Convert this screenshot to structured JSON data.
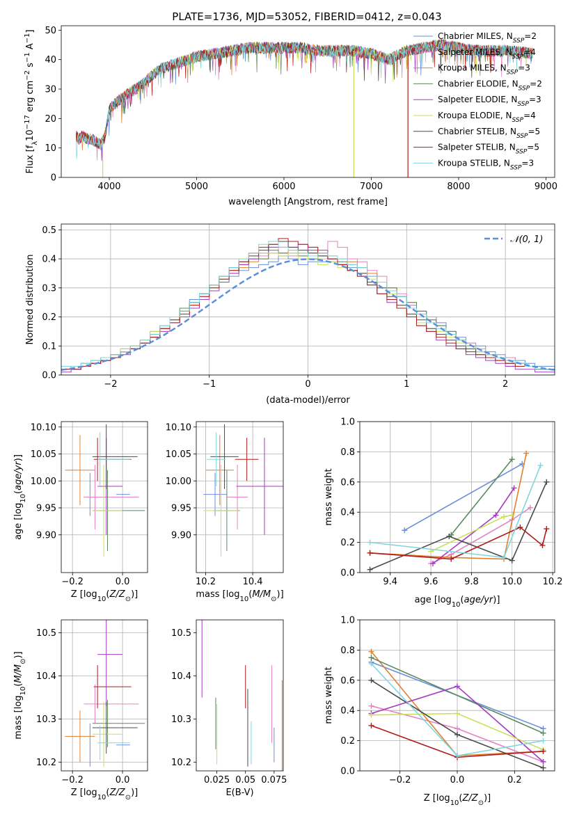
{
  "figure": {
    "title": "PLATE=1736, MJD=53052, FIBERID=0412, z=0.043"
  },
  "chart_data": [
    {
      "id": "spectrum",
      "type": "line",
      "xlabel": "wavelength [Angstrom, rest frame]",
      "ylabel_parts": [
        "Flux [f",
        "λ",
        "10",
        "−17",
        " erg cm",
        "−2",
        " s",
        "−1",
        " A",
        "−1",
        "]"
      ],
      "xlim": [
        3450,
        9100
      ],
      "ylim": [
        0,
        51.5
      ],
      "xticks": [
        4000,
        5000,
        6000,
        7000,
        8000,
        9000
      ],
      "yticks": [
        0,
        10,
        20,
        30,
        40,
        50
      ],
      "continuum": {
        "x": [
          3600,
          3650,
          3700,
          3750,
          3800,
          3850,
          3900,
          3950,
          4000,
          4100,
          4200,
          4300,
          4400,
          4500,
          4600,
          4800,
          5000,
          5200,
          5400,
          5600,
          5800,
          6000,
          6200,
          6400,
          6600,
          6800,
          7000,
          7200,
          7400,
          7600,
          7800,
          8000,
          8200,
          8400,
          8600,
          8850
        ],
        "y": [
          15,
          13,
          14,
          13,
          13,
          12,
          11,
          14,
          23,
          26,
          28,
          30,
          32,
          35,
          37,
          39,
          41,
          42,
          43,
          44,
          44,
          44,
          44,
          43,
          43,
          43,
          42,
          40,
          43,
          44,
          45,
          44,
          43,
          43,
          43,
          42
        ]
      },
      "drops": [
        {
          "series": "Kroupa ELODIE, N_SSP=4",
          "x": 3925
        },
        {
          "series": "Kroupa ELODIE, N_SSP=4",
          "x": 6800
        },
        {
          "series": "Salpeter STELIB, N_SSP=5",
          "x": 7420
        }
      ],
      "legend_location": "upper right"
    },
    {
      "id": "residuals",
      "type": "histogram",
      "xlabel": "(data-model)/error",
      "ylabel": "Normed distribution",
      "xlim": [
        -2.5,
        2.5
      ],
      "ylim": [
        0,
        0.52
      ],
      "xticks": [
        -2,
        -1,
        0,
        1,
        2
      ],
      "yticks": [
        0.0,
        0.1,
        0.2,
        0.3,
        0.4,
        0.5
      ],
      "grid": true,
      "bin_width": 0.1,
      "bin_start": -2.5,
      "reference_curve": {
        "label": "𝒩(0, 1)",
        "style": "dashed",
        "color": "#5b8fd9"
      },
      "legend_location": "upper right"
    },
    {
      "id": "age_vs_Z",
      "type": "errorbar",
      "xlabel": "Z [log10(Z/Z⊙)]",
      "ylabel": "age  [log10(age/yr)]",
      "xlim": [
        -0.245,
        0.1
      ],
      "ylim": [
        9.83,
        10.11
      ],
      "xticks": [
        -0.2,
        0.0
      ],
      "yticks": [
        9.9,
        9.95,
        10.0,
        10.05,
        10.1
      ],
      "grid": true
    },
    {
      "id": "age_vs_mass",
      "type": "errorbar",
      "xlabel": "mass [log10(M/M⊙)]",
      "ylabel": "",
      "xlim": [
        10.16,
        10.53
      ],
      "ylim": [
        9.83,
        10.11
      ],
      "xticks": [
        10.2,
        10.4
      ],
      "yticks": [
        9.9,
        9.95,
        10.0,
        10.05,
        10.1
      ],
      "grid": true
    },
    {
      "id": "weight_vs_age",
      "type": "line",
      "xlabel": "age  [log10(age/yr)]",
      "ylabel": "mass weight",
      "xlim": [
        9.25,
        10.21
      ],
      "ylim": [
        0,
        1
      ],
      "xticks": [
        9.4,
        9.6,
        9.8,
        10.0,
        10.2
      ],
      "yticks": [
        0.0,
        0.2,
        0.4,
        0.6,
        0.8,
        1.0
      ],
      "grid": true
    },
    {
      "id": "mass_vs_Z",
      "type": "errorbar",
      "xlabel": "Z [log10(Z/Z⊙)]",
      "ylabel": "mass [log10(M/M⊙)]",
      "xlim": [
        -0.245,
        0.1
      ],
      "ylim": [
        10.18,
        10.53
      ],
      "xticks": [
        -0.2,
        0.0
      ],
      "yticks": [
        10.2,
        10.3,
        10.4,
        10.5
      ],
      "grid": true
    },
    {
      "id": "mass_vs_ebv",
      "type": "errorbar",
      "xlabel": "E(B-V)",
      "ylabel": "",
      "xlim": [
        0.007,
        0.083
      ],
      "ylim": [
        10.18,
        10.53
      ],
      "xticks": [
        0.025,
        0.05,
        0.075
      ],
      "yticks": [
        10.2,
        10.3,
        10.4,
        10.5
      ],
      "grid": false
    },
    {
      "id": "weight_vs_Z",
      "type": "line",
      "xlabel": "Z [log10(Z/Z⊙)]",
      "ylabel": "mass weight",
      "xlim": [
        -0.34,
        0.34
      ],
      "ylim": [
        0,
        1
      ],
      "xticks": [
        -0.2,
        0.0,
        0.2
      ],
      "yticks": [
        0.0,
        0.2,
        0.4,
        0.6,
        0.8,
        1.0
      ],
      "grid": true
    }
  ],
  "series": [
    {
      "imf": "Chabrier",
      "lib": "MILES",
      "nssp": "2",
      "color": "#6a8fdb",
      "Z": [
        -0.13,
        -0.025,
        0.03
      ],
      "age": [
        9.975,
        9.975,
        0.08
      ],
      "mass": [
        10.24,
        10.24,
        0.05
      ],
      "ebv": 0.075,
      "ebv_err": 0.04,
      "tracks_age": [
        [
          9.47,
          0.28
        ],
        [
          10.05,
          0.72
        ]
      ],
      "tracks_Z": [
        [
          -0.3,
          0.72
        ],
        [
          0.3,
          0.28
        ]
      ],
      "hist": [
        0.02,
        0.02,
        0.03,
        0.05,
        0.05,
        0.06,
        0.08,
        0.09,
        0.11,
        0.14,
        0.17,
        0.2,
        0.22,
        0.26,
        0.27,
        0.3,
        0.33,
        0.34,
        0.36,
        0.37,
        0.38,
        0.39,
        0.41,
        0.4,
        0.38,
        0.39,
        0.39,
        0.39,
        0.38,
        0.37,
        0.35,
        0.34,
        0.32,
        0.29,
        0.27,
        0.24,
        0.22,
        0.2,
        0.18,
        0.15,
        0.13,
        0.11,
        0.1,
        0.08,
        0.07,
        0.06,
        0.05,
        0.04,
        0.03,
        0.03
      ]
    },
    {
      "imf": "Salpeter",
      "lib": "MILES",
      "nssp": "4",
      "color": "#e583c4",
      "Z": [
        -0.11,
        -0.155,
        0.065
      ],
      "age": [
        9.97,
        9.97,
        0.12
      ],
      "mass": [
        10.335,
        10.335,
        0.045
      ],
      "ebv": 0.073,
      "ebv_err": 0.09,
      "tracks_age": [
        [
          9.6,
          0.06
        ],
        [
          9.7,
          0.12
        ],
        [
          10.0,
          0.35
        ],
        [
          10.09,
          0.43
        ]
      ],
      "tracks_Z": [
        [
          -0.3,
          0.43
        ],
        [
          0.0,
          0.28
        ],
        [
          0.3,
          0.06
        ]
      ],
      "hist": [
        0.02,
        0.03,
        0.03,
        0.04,
        0.05,
        0.06,
        0.08,
        0.1,
        0.11,
        0.14,
        0.16,
        0.19,
        0.22,
        0.25,
        0.27,
        0.3,
        0.33,
        0.36,
        0.38,
        0.4,
        0.41,
        0.44,
        0.42,
        0.41,
        0.41,
        0.44,
        0.42,
        0.46,
        0.44,
        0.4,
        0.39,
        0.36,
        0.34,
        0.3,
        0.28,
        0.24,
        0.21,
        0.2,
        0.17,
        0.15,
        0.12,
        0.11,
        0.09,
        0.07,
        0.06,
        0.06,
        0.04,
        0.03,
        0.02,
        0.02
      ]
    },
    {
      "imf": "Kroupa",
      "lib": "MILES",
      "nssp": "3",
      "color": "#e0802e",
      "Z": [
        -0.17,
        -0.23,
        -0.11
      ],
      "age": [
        10.02,
        10.02,
        0.13
      ],
      "mass": [
        10.26,
        10.26,
        0.06
      ],
      "ebv": 0.082,
      "ebv_err": 0.13,
      "tracks_age": [
        [
          9.3,
          0.13
        ],
        [
          9.7,
          0.1
        ],
        [
          9.96,
          0.09
        ],
        [
          10.07,
          0.79
        ]
      ],
      "tracks_Z": [
        [
          -0.3,
          0.79
        ],
        [
          0.0,
          0.1
        ],
        [
          0.3,
          0.13
        ]
      ],
      "hist": [
        0.02,
        0.03,
        0.04,
        0.05,
        0.06,
        0.07,
        0.08,
        0.1,
        0.12,
        0.14,
        0.16,
        0.19,
        0.22,
        0.24,
        0.28,
        0.31,
        0.33,
        0.35,
        0.37,
        0.39,
        0.4,
        0.42,
        0.42,
        0.43,
        0.42,
        0.42,
        0.41,
        0.41,
        0.4,
        0.39,
        0.37,
        0.35,
        0.32,
        0.3,
        0.27,
        0.25,
        0.22,
        0.19,
        0.17,
        0.14,
        0.12,
        0.1,
        0.08,
        0.07,
        0.06,
        0.05,
        0.04,
        0.03,
        0.02,
        0.02
      ]
    },
    {
      "imf": "Chabrier",
      "lib": "ELODIE",
      "nssp": "2",
      "color": "#5a8a60",
      "Z": [
        -0.06,
        -0.12,
        0.09
      ],
      "age": [
        9.945,
        9.945,
        0.15
      ],
      "mass": [
        10.29,
        10.29,
        0.055
      ],
      "ebv": 0.024,
      "ebv_err": 0.06,
      "tracks_age": [
        [
          9.7,
          0.25
        ],
        [
          10.0,
          0.75
        ]
      ],
      "tracks_Z": [
        [
          -0.3,
          0.75
        ],
        [
          0.3,
          0.25
        ]
      ],
      "hist": [
        0.02,
        0.02,
        0.04,
        0.04,
        0.06,
        0.07,
        0.09,
        0.1,
        0.12,
        0.15,
        0.17,
        0.2,
        0.23,
        0.25,
        0.28,
        0.31,
        0.34,
        0.36,
        0.38,
        0.4,
        0.4,
        0.43,
        0.42,
        0.42,
        0.41,
        0.4,
        0.41,
        0.4,
        0.39,
        0.38,
        0.37,
        0.34,
        0.32,
        0.3,
        0.27,
        0.25,
        0.22,
        0.19,
        0.17,
        0.15,
        0.12,
        0.1,
        0.08,
        0.07,
        0.06,
        0.04,
        0.04,
        0.03,
        0.02,
        0.02
      ]
    },
    {
      "imf": "Salpeter",
      "lib": "ELODIE",
      "nssp": "3",
      "color": "#a33cc0",
      "Z": [
        -0.065,
        -0.1,
        0.0
      ],
      "age": [
        9.99,
        9.99,
        0.18
      ],
      "mass": [
        10.45,
        10.45,
        0.12
      ],
      "ebv": 0.012,
      "ebv_err": 0.1,
      "tracks_age": [
        [
          9.61,
          0.06
        ],
        [
          9.92,
          0.38
        ],
        [
          10.01,
          0.56
        ]
      ],
      "tracks_Z": [
        [
          -0.3,
          0.38
        ],
        [
          0.0,
          0.56
        ],
        [
          0.3,
          0.06
        ]
      ],
      "hist": [
        0.01,
        0.02,
        0.03,
        0.04,
        0.05,
        0.06,
        0.07,
        0.09,
        0.11,
        0.13,
        0.15,
        0.18,
        0.2,
        0.23,
        0.26,
        0.29,
        0.32,
        0.35,
        0.38,
        0.4,
        0.42,
        0.44,
        0.44,
        0.44,
        0.45,
        0.43,
        0.43,
        0.4,
        0.38,
        0.36,
        0.34,
        0.31,
        0.28,
        0.25,
        0.23,
        0.2,
        0.17,
        0.15,
        0.12,
        0.1,
        0.09,
        0.07,
        0.06,
        0.05,
        0.04,
        0.03,
        0.02,
        0.02,
        0.01,
        0.01
      ]
    },
    {
      "imf": "Kroupa",
      "lib": "ELODIE",
      "nssp": "4",
      "color": "#c8e15a",
      "Z": [
        -0.075,
        -0.12,
        0.0
      ],
      "age": [
        9.945,
        9.945,
        0.17
      ],
      "mass": [
        10.265,
        10.265,
        0.075
      ],
      "ebv": 0.025,
      "ebv_err": 0.07,
      "tracks_age": [
        [
          9.6,
          0.14
        ],
        [
          9.96,
          0.37
        ],
        [
          10.0,
          0.38
        ]
      ],
      "tracks_Z": [
        [
          -0.3,
          0.37
        ],
        [
          0.0,
          0.38
        ],
        [
          0.3,
          0.14
        ]
      ],
      "hist": [
        0.02,
        0.03,
        0.04,
        0.05,
        0.06,
        0.07,
        0.09,
        0.1,
        0.12,
        0.15,
        0.17,
        0.19,
        0.22,
        0.25,
        0.28,
        0.3,
        0.33,
        0.37,
        0.4,
        0.41,
        0.42,
        0.42,
        0.41,
        0.42,
        0.4,
        0.42,
        0.38,
        0.39,
        0.37,
        0.36,
        0.35,
        0.33,
        0.3,
        0.28,
        0.24,
        0.21,
        0.18,
        0.16,
        0.15,
        0.13,
        0.11,
        0.09,
        0.08,
        0.07,
        0.06,
        0.05,
        0.04,
        0.03,
        0.02,
        0.02
      ]
    },
    {
      "imf": "Chabrier",
      "lib": "STELIB",
      "nssp": "5",
      "color": "#4a4a4a",
      "Z": [
        -0.065,
        -0.12,
        0.06
      ],
      "age": [
        10.045,
        10.045,
        0.12
      ],
      "mass": [
        10.28,
        10.28,
        0.06
      ],
      "ebv": 0.052,
      "ebv_err": 0.09,
      "tracks_age": [
        [
          9.3,
          0.02
        ],
        [
          9.69,
          0.24
        ],
        [
          10.0,
          0.08
        ],
        [
          10.17,
          0.6
        ]
      ],
      "tracks_Z": [
        [
          -0.3,
          0.6
        ],
        [
          0.0,
          0.24
        ],
        [
          0.3,
          0.02
        ]
      ],
      "hist": [
        0.03,
        0.03,
        0.03,
        0.04,
        0.05,
        0.07,
        0.08,
        0.09,
        0.11,
        0.13,
        0.16,
        0.19,
        0.22,
        0.25,
        0.28,
        0.31,
        0.34,
        0.37,
        0.39,
        0.41,
        0.43,
        0.45,
        0.46,
        0.44,
        0.43,
        0.42,
        0.41,
        0.4,
        0.38,
        0.36,
        0.35,
        0.32,
        0.3,
        0.27,
        0.24,
        0.21,
        0.19,
        0.16,
        0.14,
        0.12,
        0.1,
        0.09,
        0.07,
        0.06,
        0.05,
        0.04,
        0.03,
        0.03,
        0.02,
        0.02
      ]
    },
    {
      "imf": "Salpeter",
      "lib": "STELIB",
      "nssp": "5",
      "color": "#b01c1c",
      "Z": [
        -0.1,
        -0.115,
        0.035
      ],
      "age": [
        10.04,
        10.04,
        0.08
      ],
      "mass": [
        10.375,
        10.375,
        0.05
      ],
      "ebv": 0.05,
      "ebv_err": 0.05,
      "tracks_age": [
        [
          9.3,
          0.13
        ],
        [
          9.7,
          0.09
        ],
        [
          10.04,
          0.3
        ],
        [
          10.15,
          0.18
        ],
        [
          10.17,
          0.29
        ]
      ],
      "tracks_Z": [
        [
          -0.3,
          0.3
        ],
        [
          0.0,
          0.09
        ],
        [
          0.3,
          0.13
        ]
      ],
      "hist": [
        0.02,
        0.02,
        0.03,
        0.04,
        0.05,
        0.06,
        0.08,
        0.09,
        0.11,
        0.13,
        0.16,
        0.18,
        0.21,
        0.24,
        0.27,
        0.3,
        0.33,
        0.36,
        0.39,
        0.42,
        0.44,
        0.45,
        0.47,
        0.46,
        0.45,
        0.44,
        0.42,
        0.4,
        0.38,
        0.36,
        0.34,
        0.31,
        0.28,
        0.26,
        0.23,
        0.2,
        0.17,
        0.15,
        0.13,
        0.11,
        0.09,
        0.08,
        0.07,
        0.06,
        0.05,
        0.04,
        0.03,
        0.03,
        0.02,
        0.02
      ]
    },
    {
      "imf": "Kroupa",
      "lib": "STELIB",
      "nssp": "3",
      "color": "#7fd7dd",
      "Z": [
        -0.09,
        -0.1,
        0.03
      ],
      "age": [
        10.04,
        10.04,
        0.1
      ],
      "mass": [
        10.245,
        10.245,
        0.04
      ],
      "ebv": 0.055,
      "ebv_err": 0.05,
      "tracks_age": [
        [
          9.3,
          0.2
        ],
        [
          9.96,
          0.1
        ],
        [
          10.14,
          0.71
        ]
      ],
      "tracks_Z": [
        [
          -0.3,
          0.71
        ],
        [
          0.0,
          0.1
        ],
        [
          0.3,
          0.2
        ]
      ],
      "hist": [
        0.03,
        0.03,
        0.04,
        0.05,
        0.06,
        0.07,
        0.08,
        0.1,
        0.12,
        0.14,
        0.17,
        0.2,
        0.22,
        0.25,
        0.28,
        0.31,
        0.34,
        0.37,
        0.4,
        0.42,
        0.45,
        0.46,
        0.44,
        0.43,
        0.42,
        0.41,
        0.42,
        0.41,
        0.4,
        0.38,
        0.37,
        0.34,
        0.32,
        0.29,
        0.27,
        0.23,
        0.21,
        0.18,
        0.16,
        0.14,
        0.12,
        0.1,
        0.09,
        0.07,
        0.06,
        0.05,
        0.04,
        0.03,
        0.02,
        0.02
      ]
    }
  ]
}
